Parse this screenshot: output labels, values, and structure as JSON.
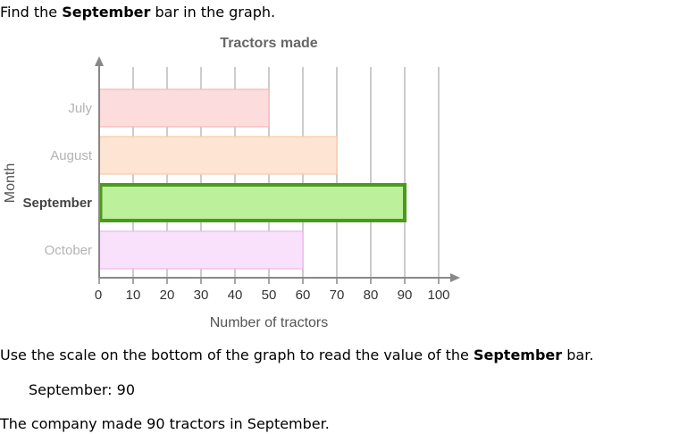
{
  "question": {
    "prefix": "Find the ",
    "bold": "September",
    "suffix": " bar in the graph."
  },
  "explanation": {
    "prefix": "Use the scale on the bottom of the graph to read the value of the ",
    "bold": "September",
    "suffix": " bar.",
    "value_line": "September: 90",
    "conclusion": "The company made 90 tractors in September."
  },
  "colors": {
    "axis": "#888888",
    "grid": "#bbbbbb",
    "highlight_border": "#4c9a1a"
  },
  "chart_data": {
    "type": "bar",
    "orientation": "horizontal",
    "title": "Tractors made",
    "xlabel": "Number of tractors",
    "ylabel": "Month",
    "xlim": [
      0,
      100
    ],
    "xticks": [
      0,
      10,
      20,
      30,
      40,
      50,
      60,
      70,
      80,
      90,
      100
    ],
    "grid": true,
    "categories": [
      "July",
      "August",
      "September",
      "October"
    ],
    "values": [
      50,
      70,
      90,
      60
    ],
    "highlighted": "September",
    "bar_colors": [
      "#fcdcdc",
      "#fde4d3",
      "#bdf09a",
      "#f9e1fb"
    ],
    "bar_borders": [
      "#f6b8b8",
      "#f8c9a8",
      "#4c9a1a",
      "#eab8ee"
    ]
  }
}
